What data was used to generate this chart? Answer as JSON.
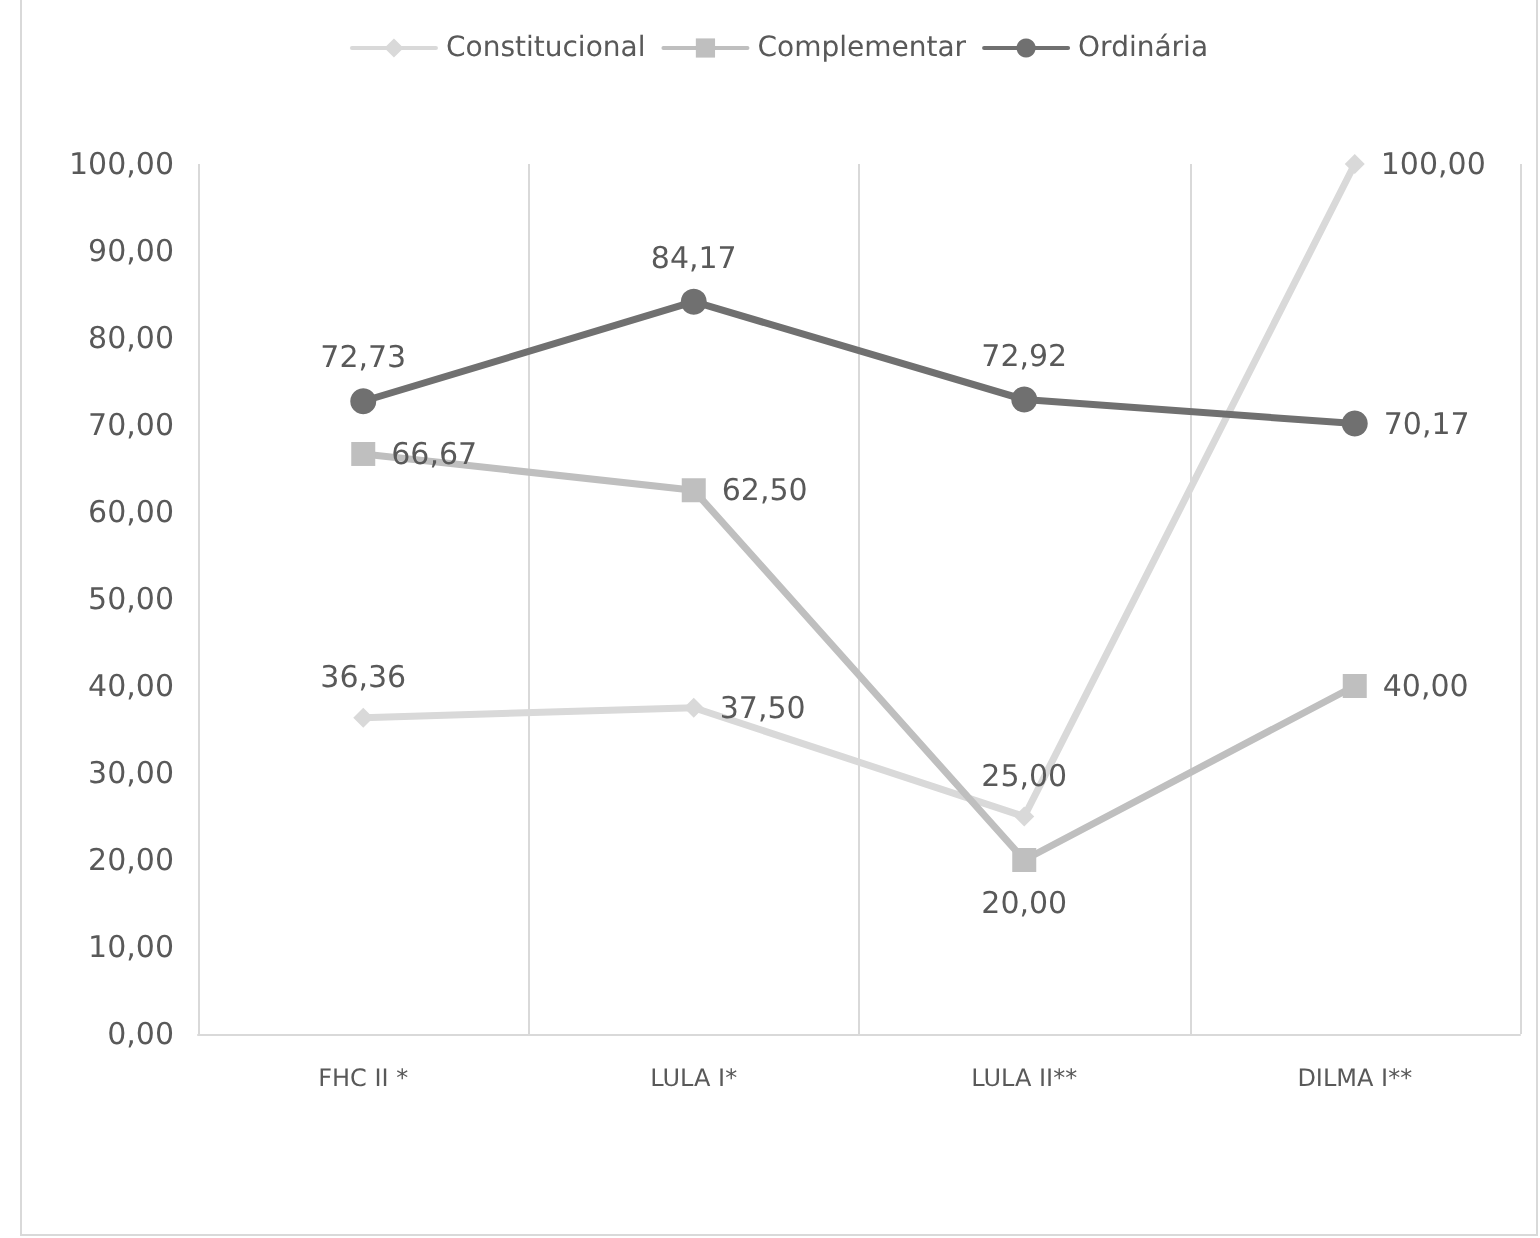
{
  "chart_data": {
    "type": "line",
    "categories": [
      "FHC II *",
      "LULA I*",
      "LULA II**",
      "DILMA I**"
    ],
    "series": [
      {
        "name": "Constitucional",
        "color": "#d9d9d9",
        "marker": "diamond",
        "values": [
          36.36,
          37.5,
          25,
          100
        ],
        "value_labels": [
          "36,36",
          "37,50",
          "25,00",
          "100,00"
        ]
      },
      {
        "name": "Complementar",
        "color": "#bfbfbf",
        "marker": "square",
        "values": [
          66.67,
          62.5,
          20,
          40
        ],
        "value_labels": [
          "66,67",
          "62,50",
          "20,00",
          "40,00"
        ]
      },
      {
        "name": "Ordinária",
        "color": "#707070",
        "marker": "circle",
        "values": [
          72.73,
          84.17,
          72.92,
          70.17
        ],
        "value_labels": [
          "72,73",
          "84,17",
          "72,92",
          "70,17"
        ]
      }
    ],
    "ylim": [
      0,
      100
    ],
    "yticks": [
      {
        "value": 0,
        "label": "0,00"
      },
      {
        "value": 10,
        "label": "10,00"
      },
      {
        "value": 20,
        "label": "20,00"
      },
      {
        "value": 30,
        "label": "30,00"
      },
      {
        "value": 40,
        "label": "40,00"
      },
      {
        "value": 50,
        "label": "50,00"
      },
      {
        "value": 60,
        "label": "60,00"
      },
      {
        "value": 70,
        "label": "70,00"
      },
      {
        "value": 80,
        "label": "80,00"
      },
      {
        "value": 90,
        "label": "90,00"
      },
      {
        "value": 100,
        "label": "100,00"
      }
    ],
    "grid": "x",
    "legend": "top",
    "line_style": "solid"
  }
}
